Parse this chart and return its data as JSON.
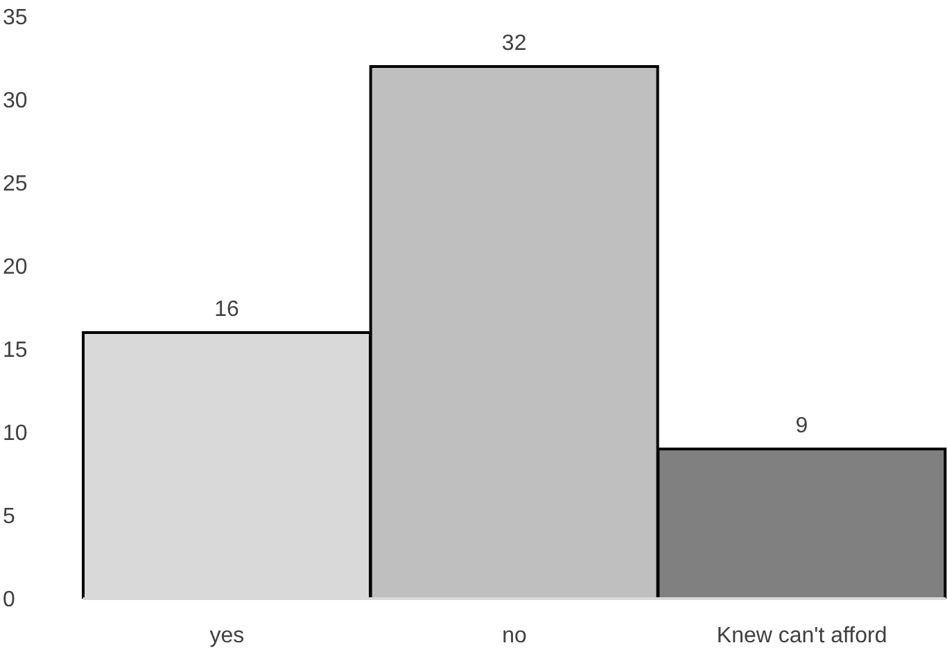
{
  "chart_data": {
    "type": "bar",
    "categories": [
      "yes",
      "no",
      "Knew can't afford"
    ],
    "values": [
      16,
      32,
      9
    ],
    "colors": [
      "#d9d9d9",
      "#bfbfbf",
      "#808080"
    ],
    "ylim": [
      0,
      35
    ],
    "yticks": [
      0,
      5,
      10,
      15,
      20,
      25,
      30,
      35
    ],
    "grid": false,
    "data_labels": true
  }
}
